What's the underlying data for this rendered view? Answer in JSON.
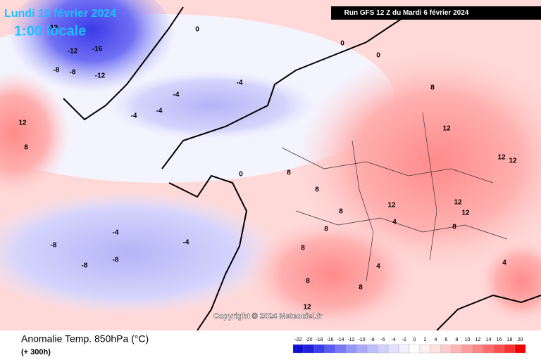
{
  "header": {
    "date": "Lundi 19 février 2024",
    "time": "1:00 locale",
    "run": "Run GFS 12 Z du Mardi 6 février 2024"
  },
  "copyright": "Copyright © 2024 Meteociel.fr",
  "footer": {
    "title": "Anomalie Temp. 850hPa (°C)",
    "subtitle": "(+ 300h)"
  },
  "legend": {
    "labels": [
      -22,
      -20,
      -18,
      -16,
      -14,
      -12,
      -10,
      -8,
      -6,
      -4,
      -2,
      0,
      2,
      4,
      6,
      8,
      10,
      12,
      14,
      16,
      18,
      20
    ],
    "colors": [
      "#1010d0",
      "#2020e0",
      "#3c3cf0",
      "#5a5af5",
      "#7878f8",
      "#9696fa",
      "#aaaafb",
      "#bebefc",
      "#d0d0fd",
      "#e2e2fe",
      "#f0f0ff",
      "#ffffff",
      "#fff0f0",
      "#ffe0e0",
      "#ffcccc",
      "#ffb4b4",
      "#ff9c9c",
      "#ff8484",
      "#ff6c6c",
      "#ff5050",
      "#ff3030",
      "#f00000"
    ]
  },
  "map": {
    "labels": [
      -12,
      -16,
      -12,
      -12,
      -8,
      -8,
      8,
      12,
      8,
      12,
      12,
      12,
      12,
      12,
      12,
      8,
      8,
      8,
      8,
      8,
      8,
      12,
      -4,
      -4,
      -4,
      -4,
      -8,
      -8,
      -8,
      -4,
      -4,
      0,
      0,
      0,
      0,
      4,
      4,
      8,
      4,
      8
    ]
  }
}
